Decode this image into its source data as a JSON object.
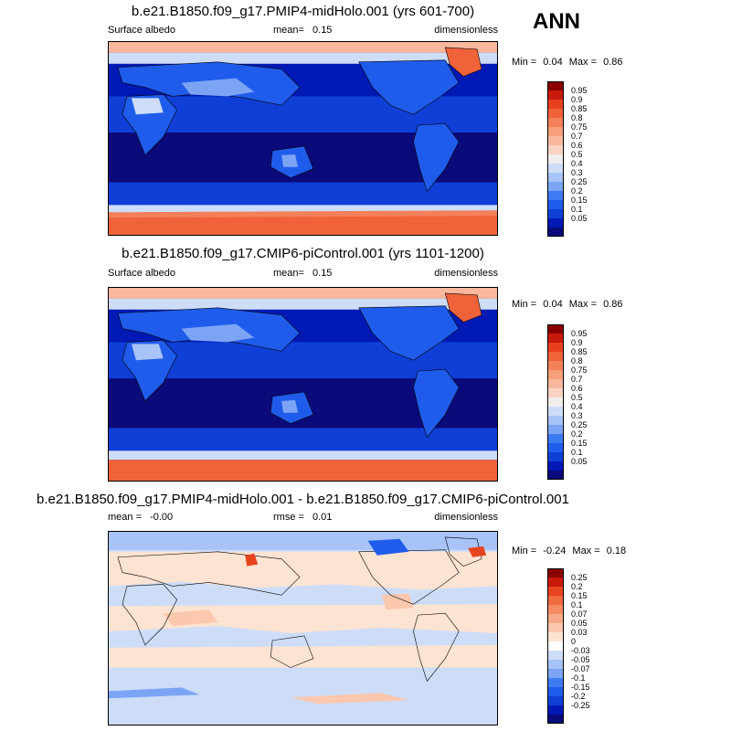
{
  "annual_label": "ANN",
  "palettes": {
    "albedo": [
      "#0a0a7a",
      "#0019b5",
      "#0f3fd6",
      "#1f5ceb",
      "#3d7bf2",
      "#7ba4f5",
      "#a7c3f7",
      "#cdddf8",
      "#f2eded",
      "#fbd3c3",
      "#f9b89d",
      "#f79e7a",
      "#f4805a",
      "#f0623a",
      "#e8401f",
      "#c81a0a",
      "#8a0000"
    ],
    "diff": [
      "#0a0a7a",
      "#0019b5",
      "#0f3fd6",
      "#1f5ceb",
      "#3d7bf2",
      "#7ba4f5",
      "#a7c3f7",
      "#cdddf8",
      "#ffffff",
      "#fde3d2",
      "#fbc7ad",
      "#f9a987",
      "#f58b62",
      "#f06a3d",
      "#e8431f",
      "#c81a0a",
      "#8a0000"
    ]
  },
  "panels": [
    {
      "title": "b.e21.B1850.f09_g17.PMIP4-midHolo.001 (yrs 601-700)",
      "variable": "Surface albedo",
      "stat_label": "mean=",
      "stat_value": "0.15",
      "stat2_label": "",
      "stat2_value": "",
      "units": "dimensionless",
      "min_label": "Min =",
      "min_value": "0.04",
      "max_label": "Max =",
      "max_value": "0.86",
      "colorbar_labels": [
        "0.95",
        "0.9",
        "0.85",
        "0.8",
        "0.75",
        "0.7",
        "0.6",
        "0.5",
        "0.4",
        "0.3",
        "0.25",
        "0.2",
        "0.15",
        "0.1",
        "0.05"
      ]
    },
    {
      "title": "b.e21.B1850.f09_g17.CMIP6-piControl.001 (yrs 1101-1200)",
      "variable": "Surface albedo",
      "stat_label": "mean=",
      "stat_value": "0.15",
      "stat2_label": "",
      "stat2_value": "",
      "units": "dimensionless",
      "min_label": "Min =",
      "min_value": "0.04",
      "max_label": "Max =",
      "max_value": "0.86",
      "colorbar_labels": [
        "0.95",
        "0.9",
        "0.85",
        "0.8",
        "0.75",
        "0.7",
        "0.6",
        "0.5",
        "0.4",
        "0.3",
        "0.25",
        "0.2",
        "0.15",
        "0.1",
        "0.05"
      ]
    },
    {
      "title": "b.e21.B1850.f09_g17.PMIP4-midHolo.001 - b.e21.B1850.f09_g17.CMIP6-piControl.001",
      "variable": "",
      "stat_label": "mean =",
      "stat_value": "-0.00",
      "stat2_label": "rmse =",
      "stat2_value": "0.01",
      "units": "dimensionless",
      "min_label": "Min =",
      "min_value": "-0.24",
      "max_label": "Max =",
      "max_value": "0.18",
      "colorbar_labels": [
        "0.25",
        "0.2",
        "0.15",
        "0.1",
        "0.07",
        "0.05",
        "0.03",
        "0",
        "-0.03",
        "-0.05",
        "-0.07",
        "-0.1",
        "-0.15",
        "-0.2",
        "-0.25"
      ]
    }
  ]
}
